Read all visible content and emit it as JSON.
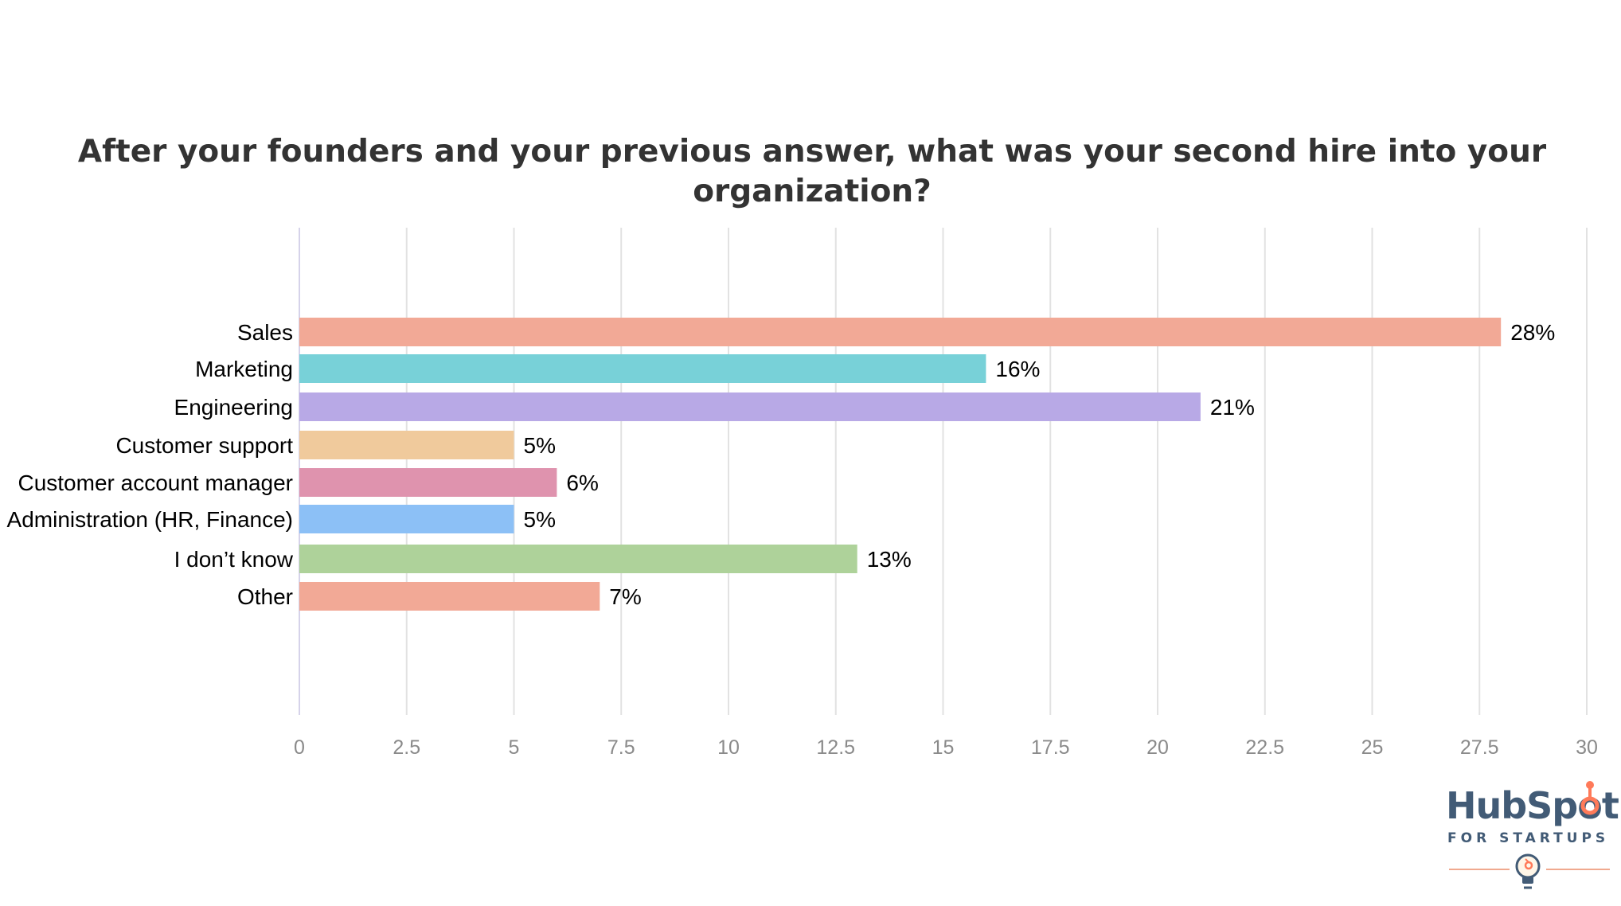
{
  "chart_data": {
    "type": "bar",
    "orientation": "horizontal",
    "title": "After your founders and your previous answer, what was your second hire into your organization?",
    "xlabel": "",
    "ylabel": "",
    "categories": [
      "Sales",
      "Marketing",
      "Engineering",
      "Customer support",
      "Customer account manager",
      "Administration (HR, Finance)",
      "I don’t know",
      "Other"
    ],
    "values": [
      28,
      16,
      21,
      5,
      6,
      5,
      13,
      7
    ],
    "value_labels": [
      "28%",
      "16%",
      "21%",
      "5%",
      "6%",
      "5%",
      "13%",
      "7%"
    ],
    "colors": [
      "#f2a996",
      "#78d1d8",
      "#b8a9e6",
      "#f0ca9c",
      "#df93ae",
      "#8cc0f6",
      "#aed29a",
      "#f2a996"
    ],
    "xlim": [
      0,
      30
    ],
    "xticks": [
      0,
      2.5,
      5,
      7.5,
      10,
      12.5,
      15,
      17.5,
      20,
      22.5,
      25,
      27.5,
      30
    ],
    "xtick_labels": [
      "0",
      "2.5",
      "5",
      "7.5",
      "10",
      "12.5",
      "15",
      "17.5",
      "20",
      "22.5",
      "25",
      "27.5",
      "30"
    ],
    "grid": true,
    "legend": false
  },
  "logo": {
    "word": "HubSpot",
    "sub": "FOR STARTUPS",
    "brand_color": "#425b76",
    "accent_color": "#ff7a59"
  }
}
